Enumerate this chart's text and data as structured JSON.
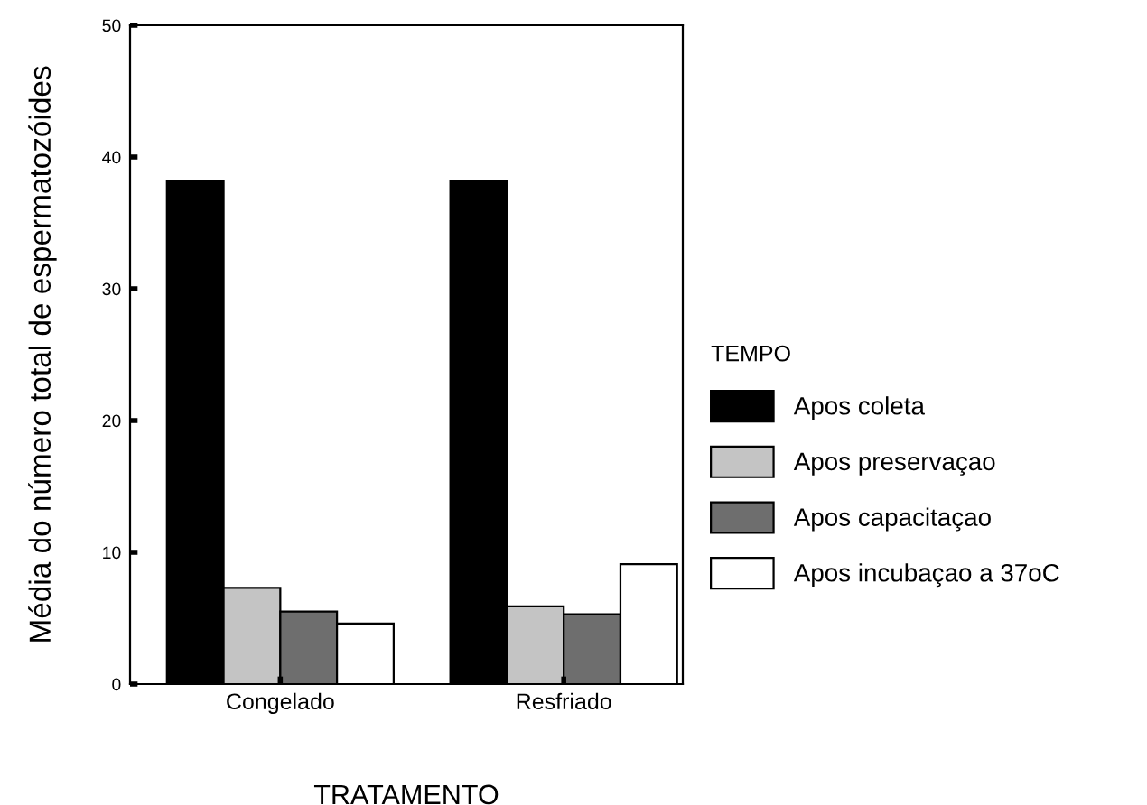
{
  "chart_data": {
    "type": "bar",
    "xlabel": "TRATAMENTO",
    "ylabel": "Média do número total de espermatozóides",
    "legend_title": "TEMPO",
    "legend": "right",
    "categories": [
      "Congelado",
      "Resfriado"
    ],
    "series": [
      {
        "name": "Apos coleta",
        "color": "#000000",
        "values": [
          38.2,
          38.2
        ]
      },
      {
        "name": "Apos preservaçao",
        "color": "#c4c4c4",
        "values": [
          7.3,
          5.9
        ]
      },
      {
        "name": "Apos capacitaçao",
        "color": "#6e6e6e",
        "values": [
          5.5,
          5.3
        ]
      },
      {
        "name": "Apos incubaçao a 37oC",
        "color": "#ffffff",
        "values": [
          4.6,
          9.1
        ]
      }
    ],
    "ylim": [
      0,
      50
    ],
    "yticks": [
      0,
      10,
      20,
      30,
      40,
      50
    ],
    "grid": false
  }
}
